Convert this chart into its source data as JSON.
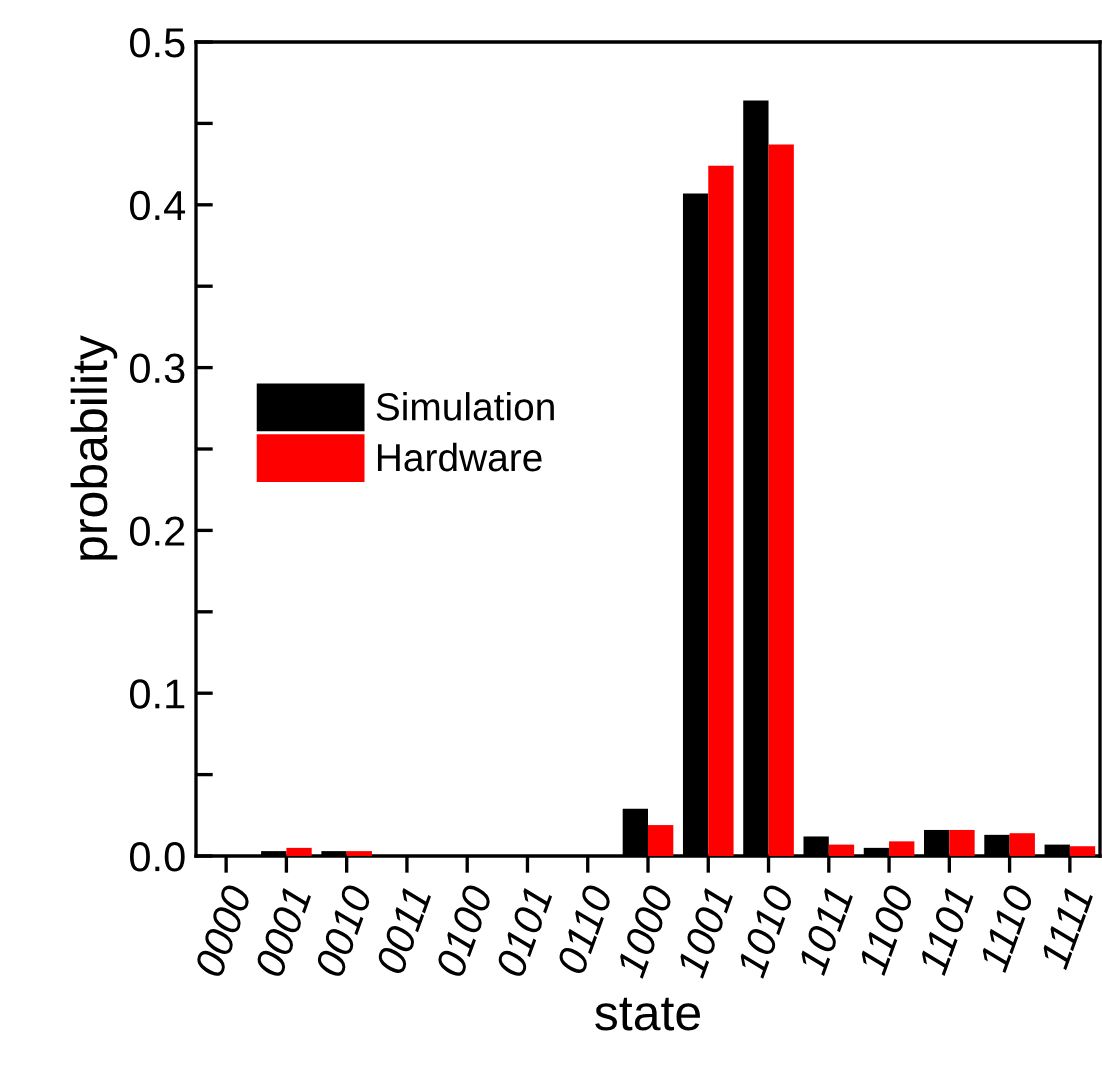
{
  "chart_data": {
    "type": "bar",
    "xlabel": "state",
    "ylabel": "probability",
    "categories": [
      "0000",
      "0001",
      "0010",
      "0011",
      "0100",
      "0101",
      "0110",
      "1000",
      "1001",
      "1010",
      "1011",
      "1100",
      "1101",
      "1110",
      "1111"
    ],
    "series": [
      {
        "name": "Simulation",
        "color": "#000000",
        "values": [
          0,
          0.003,
          0.003,
          0,
          0,
          0,
          0,
          0.029,
          0.407,
          0.464,
          0.012,
          0.005,
          0.016,
          0.013,
          0.007
        ]
      },
      {
        "name": "Hardware",
        "color": "#ff0000",
        "values": [
          0,
          0.005,
          0.003,
          0,
          0,
          0,
          0,
          0.019,
          0.424,
          0.437,
          0.007,
          0.009,
          0.016,
          0.014,
          0.006
        ]
      }
    ],
    "ylim": [
      0,
      0.5
    ],
    "yticks": [
      {
        "value": 0.0,
        "label": "0.0"
      },
      {
        "value": 0.05,
        "label": null
      },
      0.1,
      {
        "value": 0.15,
        "label": null
      },
      0.2,
      {
        "value": 0.25,
        "label": null
      },
      0.3,
      {
        "value": 0.35,
        "label": null
      },
      0.4,
      {
        "value": 0.45,
        "label": null
      },
      0.5
    ],
    "legend": "left",
    "grid": false
  }
}
